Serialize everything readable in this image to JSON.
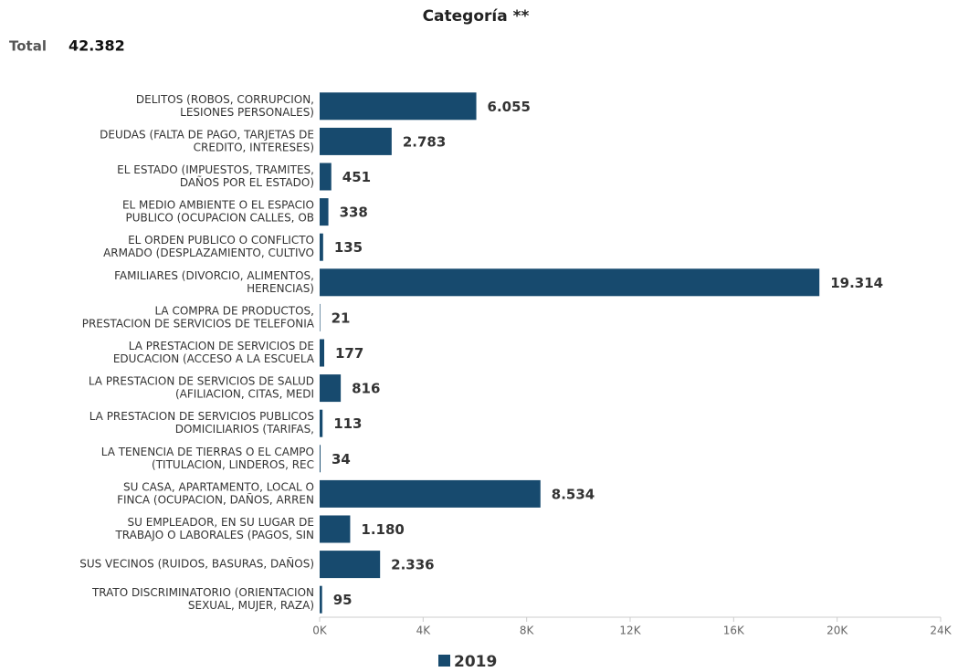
{
  "chart_data": {
    "type": "barh",
    "title": "Categoría **",
    "total": {
      "label": "Total",
      "value": 42382,
      "value_label": "42.382"
    },
    "categories": [
      [
        "DELITOS (ROBOS, CORRUPCION,",
        "LESIONES PERSONALES)"
      ],
      [
        "DEUDAS (FALTA DE PAGO, TARJETAS DE",
        "CREDITO, INTERESES)"
      ],
      [
        "EL ESTADO (IMPUESTOS, TRAMITES,",
        "DAÑOS POR EL ESTADO)"
      ],
      [
        "EL MEDIO AMBIENTE O EL ESPACIO",
        "PUBLICO (OCUPACION CALLES, OB"
      ],
      [
        "EL ORDEN PUBLICO O CONFLICTO",
        "ARMADO (DESPLAZAMIENTO, CULTIVO"
      ],
      [
        "FAMILIARES (DIVORCIO, ALIMENTOS,",
        "HERENCIAS)"
      ],
      [
        "LA COMPRA DE PRODUCTOS,",
        "PRESTACION DE SERVICIOS DE TELEFONIA"
      ],
      [
        "LA PRESTACION DE SERVICIOS DE",
        "EDUCACION (ACCESO A LA ESCUELA"
      ],
      [
        "LA PRESTACION DE SERVICIOS DE SALUD",
        "(AFILIACION, CITAS, MEDI"
      ],
      [
        "LA PRESTACION DE SERVICIOS PUBLICOS",
        "DOMICILIARIOS (TARIFAS,"
      ],
      [
        "LA TENENCIA DE TIERRAS O EL CAMPO",
        "(TITULACION, LINDEROS, REC"
      ],
      [
        "SU CASA, APARTAMENTO, LOCAL O",
        "FINCA (OCUPACION, DAÑOS, ARREN"
      ],
      [
        "SU EMPLEADOR, EN SU LUGAR DE",
        "TRABAJO O LABORALES (PAGOS, SIN"
      ],
      [
        "SUS VECINOS (RUIDOS, BASURAS, DAÑOS)"
      ],
      [
        "TRATO DISCRIMINATORIO (ORIENTACION",
        "SEXUAL, MUJER, RAZA)"
      ]
    ],
    "series": [
      {
        "name": "2019",
        "color": "#174a6e",
        "values": [
          6055,
          2783,
          451,
          338,
          135,
          19314,
          21,
          177,
          816,
          113,
          34,
          8534,
          1180,
          2336,
          95
        ],
        "value_labels": [
          "6.055",
          "2.783",
          "451",
          "338",
          "135",
          "19.314",
          "21",
          "177",
          "816",
          "113",
          "34",
          "8.534",
          "1.180",
          "2.336",
          "95"
        ]
      }
    ],
    "xlim": [
      0,
      24000
    ],
    "xticks": [
      {
        "value": 0,
        "label": "0K"
      },
      {
        "value": 4000,
        "label": "4K"
      },
      {
        "value": 8000,
        "label": "8K"
      },
      {
        "value": 12000,
        "label": "12K"
      },
      {
        "value": 16000,
        "label": "16K"
      },
      {
        "value": 20000,
        "label": "20K"
      },
      {
        "value": 24000,
        "label": "24K"
      }
    ]
  }
}
